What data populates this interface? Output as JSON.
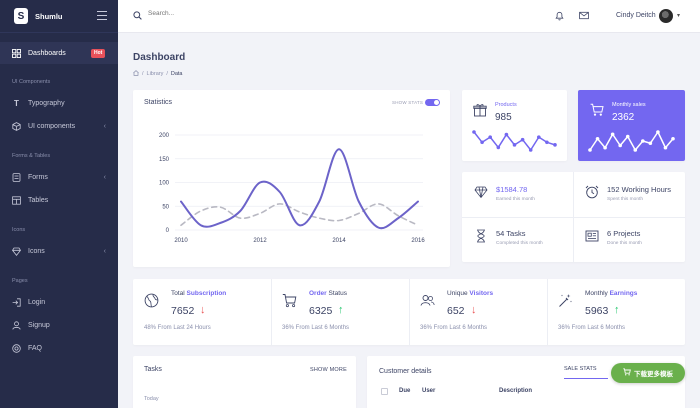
{
  "brand": {
    "name": "Shumlu",
    "logo_letter": "S"
  },
  "sidebar": {
    "items": [
      {
        "label": "Dashboards",
        "badge": "Hot"
      },
      {
        "label": "Typography"
      },
      {
        "label": "UI components"
      },
      {
        "label": "Forms"
      },
      {
        "label": "Tables"
      },
      {
        "label": "Icons"
      },
      {
        "label": "Login"
      },
      {
        "label": "Signup"
      },
      {
        "label": "FAQ"
      }
    ],
    "sections": [
      "UI Components",
      "Forms & Tables",
      "Icons",
      "Pages"
    ]
  },
  "topbar": {
    "search_placeholder": "Search...",
    "username": "Cindy Deitch"
  },
  "page": {
    "title": "Dashboard",
    "breadcrumb": [
      "Library",
      "Data"
    ]
  },
  "statistics": {
    "title": "Statistics",
    "toggle_label": "SHOW STATS",
    "toggle_on": true
  },
  "chart_data": {
    "type": "line",
    "x_ticks": [
      "2010",
      "2012",
      "2014",
      "2016"
    ],
    "y_ticks": [
      "200",
      "150",
      "100",
      "50",
      "0"
    ],
    "ylim": [
      0,
      200
    ],
    "series": [
      {
        "color": "#6c63c9",
        "style": "solid",
        "points": [
          [
            2010,
            60
          ],
          [
            2010.5,
            10
          ],
          [
            2011,
            15
          ],
          [
            2011.5,
            40
          ],
          [
            2012,
            100
          ],
          [
            2012.5,
            80
          ],
          [
            2013,
            10
          ],
          [
            2013.5,
            60
          ],
          [
            2014,
            170
          ],
          [
            2014.5,
            60
          ],
          [
            2015,
            5
          ],
          [
            2015.5,
            25
          ],
          [
            2016,
            60
          ]
        ]
      },
      {
        "color": "#b9b9c3",
        "style": "dashed",
        "points": [
          [
            2010,
            10
          ],
          [
            2010.5,
            40
          ],
          [
            2011,
            48
          ],
          [
            2011.5,
            25
          ],
          [
            2012,
            35
          ],
          [
            2012.5,
            55
          ],
          [
            2013,
            38
          ],
          [
            2013.5,
            25
          ],
          [
            2014,
            20
          ],
          [
            2014.5,
            35
          ],
          [
            2015,
            55
          ],
          [
            2015.5,
            30
          ],
          [
            2016,
            10
          ]
        ]
      }
    ]
  },
  "products_card": {
    "label": "Products",
    "value": "985",
    "spark": [
      12,
      8,
      10,
      6,
      11,
      7,
      9,
      5,
      10,
      8,
      7
    ]
  },
  "monthly_sales_card": {
    "label": "Monthly sales",
    "value": "2362",
    "bg": "#7367f0",
    "spark": [
      6,
      11,
      7,
      13,
      8,
      12,
      6,
      10,
      9,
      14,
      7,
      11
    ]
  },
  "summary": {
    "earned": {
      "value": "$1584.78",
      "sub": "Earned this month"
    },
    "hours": {
      "value": "152 Working Hours",
      "sub": "Spent this month"
    },
    "tasks": {
      "value": "54 Tasks",
      "sub": "Completed this month"
    },
    "projects": {
      "value": "6 Projects",
      "sub": "Done this month"
    }
  },
  "kpis": [
    {
      "label_plain": "Total",
      "label_bold": "Subscription",
      "value": "7652",
      "trend": "down",
      "foot": "48% From Last 24 Hours"
    },
    {
      "label_plain": "Order",
      "label_bold": "Status",
      "value": "6325",
      "trend": "up",
      "foot": "36% From Last 6 Months"
    },
    {
      "label_plain": "Unique",
      "label_bold": "Visitors",
      "value": "652",
      "trend": "down",
      "foot": "36% From Last 6 Months"
    },
    {
      "label_plain": "Monthly",
      "label_bold": "Earnings",
      "value": "5963",
      "trend": "up",
      "foot": "36% From Last 6 Months"
    }
  ],
  "tasks_panel": {
    "title": "Tasks",
    "show_more": "SHOW MORE",
    "today": "Today"
  },
  "customer_panel": {
    "title": "Customer details",
    "tab": "SALE STATS",
    "columns": [
      "Due",
      "User",
      "Description"
    ]
  },
  "fab": {
    "label": "下载更多模板"
  },
  "colors": {
    "primary": "#7367f0",
    "sidebar": "#262c49",
    "danger": "#ea5455",
    "success": "#28c76f"
  }
}
